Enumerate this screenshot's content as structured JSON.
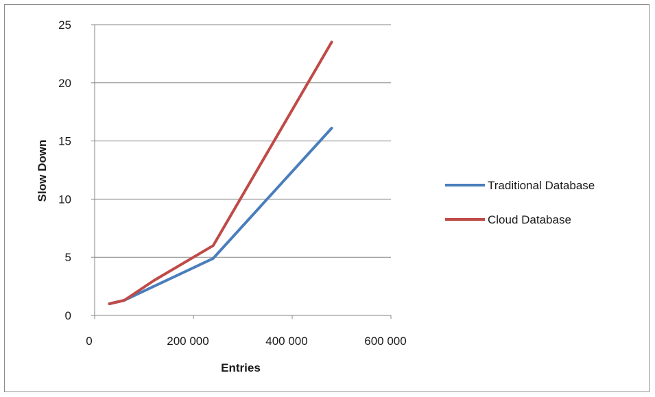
{
  "chart_data": {
    "type": "line",
    "title": "",
    "xlabel": "Entries",
    "ylabel": "Slow Down",
    "xlim": [
      0,
      600000
    ],
    "ylim": [
      0,
      25
    ],
    "xticks": [
      0,
      200000,
      400000,
      600000
    ],
    "xtick_labels": [
      "0",
      "200 000",
      "400 000",
      "600 000"
    ],
    "yticks": [
      0,
      5,
      10,
      15,
      20,
      25
    ],
    "ytick_labels": [
      "0",
      "5",
      "10",
      "15",
      "20",
      "25"
    ],
    "grid": "horizontal",
    "legend_position": "right",
    "series": [
      {
        "name": "Traditional Database",
        "color": "#4a7ebb",
        "x": [
          30000,
          60000,
          120000,
          240000,
          480000
        ],
        "y": [
          1.0,
          1.3,
          2.5,
          4.9,
          16.1
        ]
      },
      {
        "name": "Cloud Database",
        "color": "#be4b48",
        "x": [
          30000,
          60000,
          120000,
          240000,
          480000
        ],
        "y": [
          1.0,
          1.3,
          3.0,
          6.0,
          23.5
        ]
      }
    ]
  }
}
